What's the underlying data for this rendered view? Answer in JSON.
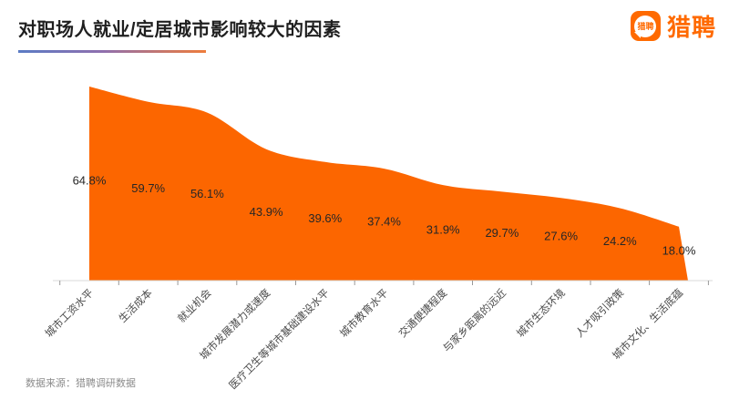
{
  "header": {
    "title": "对职场人就业/定居城市影响较大的因素"
  },
  "logo": {
    "text": "猎聘",
    "icon_text": "猎聘",
    "brand_color": "#FF6A00"
  },
  "source": {
    "text": "数据来源：猎聘调研数据"
  },
  "chart_data": {
    "type": "area",
    "title": "对职场人就业/定居城市影响较大的因素",
    "categories": [
      "城市工资水平",
      "生活成本",
      "就业机会",
      "城市发展潜力或速度",
      "医疗卫生等城市基础建设水平",
      "城市教育水平",
      "交通便捷程度",
      "与家乡距离的远近",
      "城市生态环境",
      "人才吸引政策",
      "城市文化、生活底蕴"
    ],
    "values": [
      64.8,
      59.7,
      56.1,
      43.9,
      39.6,
      37.4,
      31.9,
      29.7,
      27.6,
      24.2,
      18.0
    ],
    "value_labels": [
      "64.8%",
      "59.7%",
      "56.1%",
      "43.9%",
      "39.6%",
      "37.4%",
      "31.9%",
      "29.7%",
      "27.6%",
      "24.2%",
      "18.0%"
    ],
    "unit": "%",
    "ylim": [
      0,
      70
    ],
    "fill_color": "#FC6600",
    "label_color": "#262626",
    "axis_color": "#d9d9d9",
    "tick_color": "#999999",
    "category_label_color": "#4a4a4a",
    "grid": false,
    "legend": false,
    "smooth": true
  }
}
